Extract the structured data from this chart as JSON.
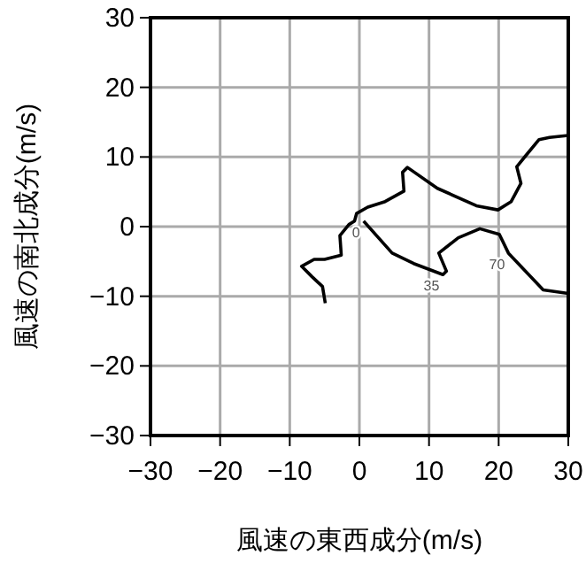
{
  "chart_data": {
    "type": "line",
    "xlabel": "風速の東西成分(m/s)",
    "ylabel": "風速の南北成分(m/s)",
    "xlim": [
      -30,
      30
    ],
    "ylim": [
      -30,
      30
    ],
    "xticks": [
      -30,
      -20,
      -10,
      0,
      10,
      20,
      30
    ],
    "yticks": [
      -30,
      -20,
      -10,
      0,
      10,
      20,
      30
    ],
    "grid": true,
    "marker": "none",
    "line_style": "solid",
    "series": [
      {
        "color": "#000000",
        "x": [
          -4.9,
          -5.3,
          -6.8,
          -8.3,
          -6.5,
          -5.0,
          -2.6,
          -2.8,
          -1.5,
          -0.7,
          -0.4,
          1.2,
          3.7,
          6.4,
          6.2,
          6.9,
          11.2,
          16.8,
          19.9,
          21.8,
          23.2,
          22.6,
          23.9,
          25.8,
          27.3,
          30.0
        ],
        "values": [
          -11.0,
          -8.6,
          -7.2,
          -5.7,
          -4.7,
          -4.7,
          -4.1,
          -1.3,
          0.3,
          0.8,
          1.9,
          2.8,
          3.6,
          5.1,
          7.8,
          8.5,
          5.5,
          3.0,
          2.4,
          3.6,
          6.2,
          8.6,
          10.2,
          12.5,
          12.8,
          13.1
        ]
      },
      {
        "color": "#000000",
        "x": [
          0.6,
          4.7,
          7.8,
          12.0,
          12.5,
          11.4,
          14.2,
          17.3,
          20.1,
          21.4,
          26.4,
          30.0
        ],
        "values": [
          0.8,
          -3.8,
          -5.3,
          -6.9,
          -6.4,
          -3.8,
          -1.6,
          -0.3,
          -1.1,
          -3.8,
          -9.1,
          -9.6
        ]
      }
    ],
    "annotations": [
      {
        "text": "0",
        "x": 0.6,
        "y": 0.8
      },
      {
        "text": "35",
        "x": 12.0,
        "y": -6.9
      },
      {
        "text": "70",
        "x": 21.4,
        "y": -3.8
      }
    ]
  }
}
